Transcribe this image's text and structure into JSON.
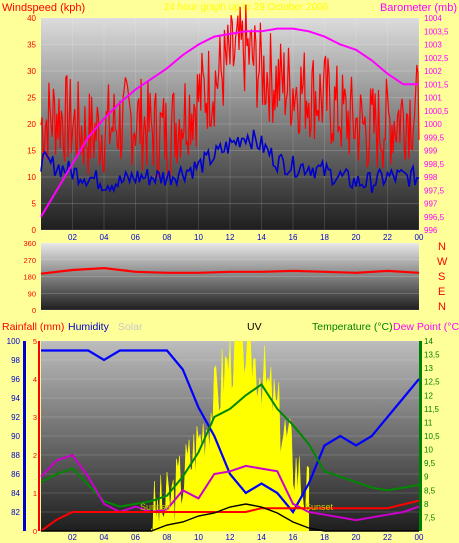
{
  "header": {
    "left_label": "Windspeed (kph)",
    "center_label": "24 hour graph up to 29 October 2006",
    "right_label": "Barometer (mb)"
  },
  "direction_labels": [
    "N",
    "W",
    "S",
    "E",
    "N"
  ],
  "bottom_labels": {
    "rainfall": "Rainfall (mm)",
    "humidity": "Humidity",
    "solar": "Solar",
    "uv": "UV",
    "temperature": "Temperature (°C)",
    "dewpoint": "Dew Point (°C)"
  },
  "colors": {
    "wind_gust": "#ff0000",
    "wind_avg": "#0000cc",
    "barometer": "#ff00ff",
    "direction": "#ff0000",
    "humidity": "#0000ff",
    "solar": "#ffff00",
    "uv": "#000000",
    "temperature": "#008800",
    "dewpoint": "#cc00cc",
    "rainfall": "#ff0000",
    "label_red": "#ff0000",
    "label_magenta": "#ff00ff",
    "label_blue": "#0000cc",
    "label_green": "#008000"
  },
  "x_ticks": [
    "02",
    "04",
    "06",
    "08",
    "10",
    "12",
    "14",
    "16",
    "18",
    "20",
    "22",
    "00"
  ],
  "chart_data": [
    {
      "type": "line",
      "name": "wind-barometer",
      "x_hours": [
        0,
        1,
        2,
        3,
        4,
        5,
        6,
        7,
        8,
        9,
        10,
        11,
        12,
        13,
        14,
        15,
        16,
        17,
        18,
        19,
        20,
        21,
        22,
        23,
        24
      ],
      "series": [
        {
          "name": "Gust",
          "values": [
            20,
            22,
            20,
            18,
            19,
            20,
            21,
            19,
            18,
            22,
            25,
            28,
            32,
            34,
            30,
            28,
            27,
            26,
            25,
            22,
            20,
            19,
            20,
            22,
            23
          ]
        },
        {
          "name": "Average",
          "values": [
            13,
            12,
            11,
            10,
            9,
            9,
            10,
            10,
            10,
            11,
            12,
            14,
            16,
            18,
            16,
            13,
            12,
            12,
            11,
            10,
            9,
            9,
            10,
            10,
            10
          ]
        },
        {
          "name": "Barometer",
          "values": [
            996.5,
            997.5,
            998.5,
            999.5,
            1000.2,
            1000.8,
            1001.3,
            1001.7,
            1002.1,
            1002.6,
            1003.0,
            1003.3,
            1003.4,
            1003.5,
            1003.5,
            1003.6,
            1003.6,
            1003.5,
            1003.3,
            1003.0,
            1002.8,
            1002.4,
            1001.9,
            1001.5,
            1001.5
          ]
        }
      ],
      "y_left": {
        "min": 0,
        "max": 40,
        "ticks": [
          0,
          5,
          10,
          15,
          20,
          25,
          30,
          35,
          40
        ]
      },
      "y_right": {
        "min": 996,
        "max": 1004,
        "ticks": [
          "996",
          "996,5",
          "997",
          "997,5",
          "998",
          "998,5",
          "999",
          "999,5",
          "1000",
          "1000,5",
          "1001",
          "1001,5",
          "1002",
          "1002,5",
          "1003",
          "1003,5",
          "1004"
        ]
      }
    },
    {
      "type": "line",
      "name": "wind-direction",
      "x_hours": [
        0,
        2,
        4,
        6,
        8,
        10,
        12,
        14,
        16,
        18,
        20,
        22,
        24
      ],
      "values": [
        195,
        215,
        225,
        205,
        200,
        200,
        205,
        205,
        210,
        205,
        200,
        210,
        200
      ],
      "y_ticks": [
        0,
        90,
        180,
        270,
        360
      ]
    },
    {
      "type": "line",
      "name": "humidity-temp",
      "x_hours": [
        0,
        1,
        2,
        3,
        4,
        5,
        6,
        7,
        8,
        9,
        10,
        11,
        12,
        13,
        14,
        15,
        16,
        17,
        18,
        19,
        20,
        21,
        22,
        23,
        24
      ],
      "series": [
        {
          "name": "Humidity",
          "values": [
            99,
            99,
            99,
            99,
            98,
            99,
            99,
            99,
            99,
            97,
            93,
            90,
            86,
            84,
            85,
            84,
            82,
            85,
            89,
            90,
            89,
            90,
            92,
            94,
            96
          ]
        },
        {
          "name": "Temperature",
          "values": [
            8.8,
            9.1,
            9.3,
            8.7,
            8.1,
            7.9,
            8.0,
            8.1,
            8.3,
            9.0,
            9.9,
            11.2,
            11.5,
            12.0,
            12.4,
            11.5,
            10.9,
            10.2,
            9.2,
            9.0,
            8.8,
            8.6,
            8.5,
            8.6,
            8.7
          ]
        },
        {
          "name": "Dew Point",
          "values": [
            9.0,
            9.6,
            9.8,
            9.0,
            8.0,
            7.7,
            7.9,
            7.7,
            7.8,
            8.5,
            8.2,
            9.1,
            9.2,
            9.4,
            9.3,
            9.2,
            8.0,
            7.7,
            7.6,
            7.5,
            7.4,
            7.5,
            7.6,
            7.7,
            7.9
          ]
        },
        {
          "name": "Rainfall",
          "values": [
            0,
            0.3,
            0.5,
            0.5,
            0.5,
            0.5,
            0.5,
            0.5,
            0.5,
            0.5,
            0.5,
            0.5,
            0.5,
            0.5,
            0.6,
            0.6,
            0.6,
            0.6,
            0.6,
            0.6,
            0.6,
            0.6,
            0.6,
            0.7,
            0.8
          ]
        },
        {
          "name": "UV",
          "values": [
            0,
            0,
            0,
            0,
            0,
            0,
            0,
            0,
            0.2,
            0.3,
            0.5,
            0.6,
            0.8,
            0.9,
            0.8,
            0.6,
            0.3,
            0.1,
            0,
            0,
            0,
            0,
            0,
            0,
            0
          ]
        }
      ],
      "y_left_humidity": {
        "min": 80,
        "max": 100,
        "ticks": [
          82,
          84,
          86,
          88,
          90,
          92,
          94,
          96,
          98,
          100
        ]
      },
      "y_left_rain": {
        "ticks": [
          0,
          1,
          2,
          3,
          4,
          5
        ]
      },
      "y_right_temp": {
        "min": 7,
        "max": 14,
        "ticks": [
          "7,5",
          "8",
          "8,5",
          "9",
          "9,5",
          "10",
          "10,5",
          "11",
          "11,5",
          "12",
          "12,5",
          "13",
          "13,5",
          "14"
        ]
      }
    }
  ],
  "solar_series": [
    0,
    0,
    0,
    0,
    0,
    0,
    0,
    0,
    5,
    20,
    40,
    60,
    85,
    90,
    75,
    55,
    30,
    10,
    0,
    0,
    0,
    0,
    0,
    0,
    0
  ],
  "annotations": {
    "sunrise": "Sunrise",
    "sunset": "Sunset"
  }
}
